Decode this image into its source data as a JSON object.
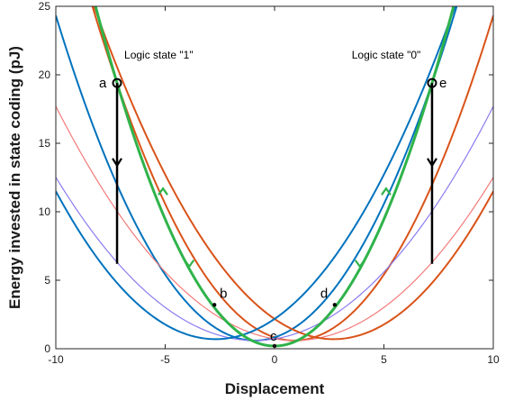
{
  "chart_data": {
    "type": "line",
    "title": "",
    "xlabel": "Displacement",
    "ylabel": "Energy invested in state coding (pJ)",
    "xlim": [
      -10,
      10
    ],
    "ylim": [
      0,
      25
    ],
    "xticks": [
      -10,
      -5,
      0,
      5,
      10
    ],
    "yticks": [
      0,
      5,
      10,
      15,
      20,
      25
    ],
    "grid": false,
    "colors": {
      "orange": "#d95319",
      "blue": "#0072bd",
      "green": "#2fb34a",
      "light_red": "#f47a7a",
      "light_purple": "#8a7cf0",
      "black": "#000000"
    },
    "series": [
      {
        "color": "orange",
        "shape": "parabola",
        "vertex_x": 0.9,
        "vertex_y": 0.6,
        "passes": [
          [
            -7.2,
            19.4
          ],
          [
            10,
            11.7
          ]
        ]
      },
      {
        "color": "blue",
        "shape": "parabola",
        "vertex_x": -0.9,
        "vertex_y": 0.6,
        "passes": [
          [
            7.2,
            19.4
          ],
          [
            -10,
            11.7
          ]
        ]
      },
      {
        "color": "light_red",
        "shape": "parabola",
        "vertex_x": 0.9,
        "vertex_y": 0.6,
        "passes": [
          [
            -10,
            17.7
          ]
        ]
      },
      {
        "color": "light_purple",
        "shape": "parabola",
        "vertex_x": -0.9,
        "vertex_y": 0.6,
        "passes": [
          [
            10,
            17.7
          ]
        ]
      },
      {
        "color": "orange",
        "shape": "parabola",
        "vertex_x": 2.7,
        "vertex_y": 0.7,
        "passes": [
          [
            10,
            11.5
          ]
        ]
      },
      {
        "color": "blue",
        "shape": "parabola",
        "vertex_x": -2.7,
        "vertex_y": 0.7,
        "passes": [
          [
            -10,
            11.5
          ]
        ]
      },
      {
        "color": "green",
        "shape": "parabola",
        "vertex_x": 0,
        "vertex_y": 0.2,
        "passes": [
          [
            7.2,
            19.4
          ]
        ]
      }
    ],
    "points": [
      {
        "label": "a",
        "x": -7.2,
        "y": 19.4,
        "marker": "circle"
      },
      {
        "label": "b",
        "x": -2.75,
        "y": 3.2,
        "marker": "dot"
      },
      {
        "label": "c",
        "x": 0,
        "y": 0.2,
        "marker": "dot"
      },
      {
        "label": "d",
        "x": 2.75,
        "y": 3.2,
        "marker": "dot"
      },
      {
        "label": "e",
        "x": 7.2,
        "y": 19.4,
        "marker": "circle"
      }
    ],
    "vertical_lines": [
      {
        "x": -7.2,
        "y_from": 19.4,
        "y_to": 6.2,
        "arrow_y": 13.5
      },
      {
        "x": 7.2,
        "y_from": 19.4,
        "y_to": 6.2,
        "arrow_y": 13.5
      }
    ],
    "green_arrows": [
      {
        "x": -5.1,
        "y": 11.5,
        "direction": "up"
      },
      {
        "x": -3.9,
        "y": 6.2,
        "direction": "down"
      },
      {
        "x": 3.9,
        "y": 6.2,
        "direction": "down"
      },
      {
        "x": 5.1,
        "y": 11.5,
        "direction": "up"
      }
    ],
    "annotations": [
      {
        "text": "Logic state \"1\"",
        "x": -7.2,
        "y": 21.2
      },
      {
        "text": "Logic state \"0\"",
        "x": 3.2,
        "y": 21.2
      }
    ]
  }
}
